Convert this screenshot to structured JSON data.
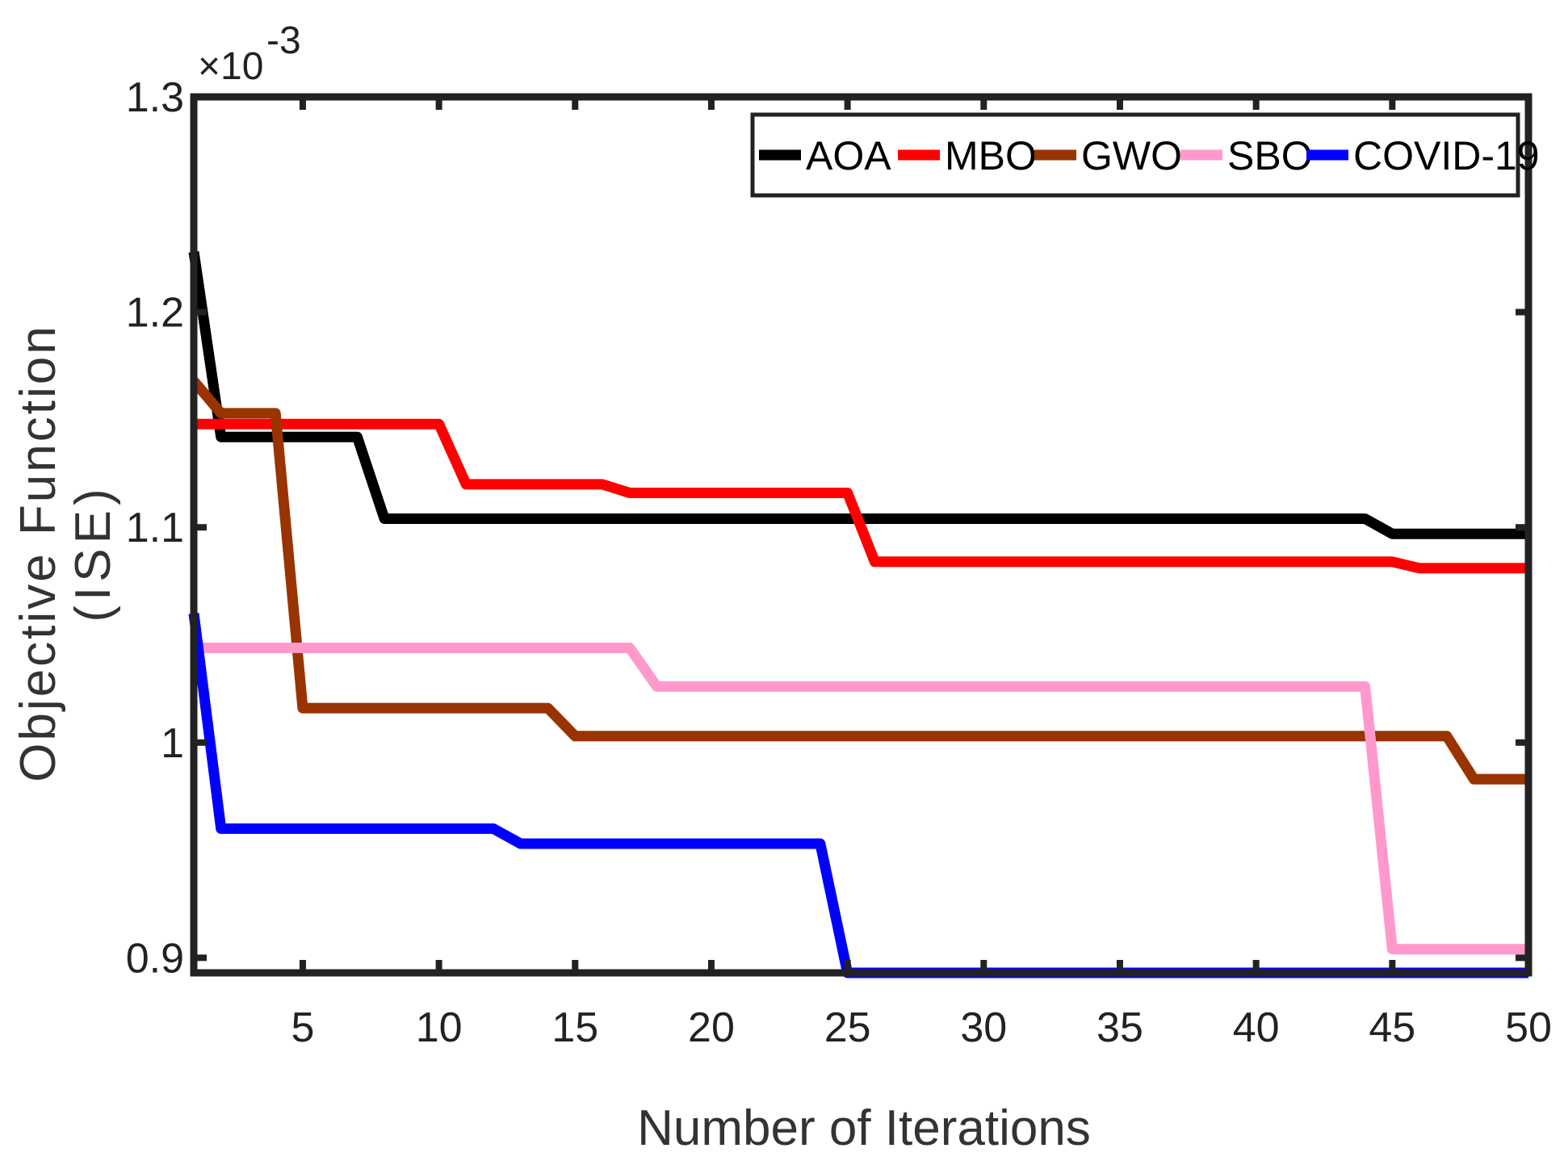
{
  "chart_data": {
    "type": "line",
    "title": "",
    "xlabel": "Number of Iterations",
    "ylabel_line1": "Objective Function",
    "ylabel_line2": "(ISE)",
    "y_multiplier_base": "×10",
    "y_multiplier_exp": "-3",
    "xlim": [
      1,
      50
    ],
    "ylim": [
      0.893,
      1.3
    ],
    "xticks": [
      5,
      10,
      15,
      20,
      25,
      30,
      35,
      40,
      45,
      50
    ],
    "xtick_labels": [
      "5",
      "10",
      "15",
      "20",
      "25",
      "30",
      "35",
      "40",
      "45",
      "50"
    ],
    "yticks": [
      0.9,
      1.0,
      1.1,
      1.2,
      1.3
    ],
    "ytick_labels": [
      "0.9",
      "1",
      "1.1",
      "1.2",
      "1.3"
    ],
    "legend_position": "top-right",
    "series": [
      {
        "name": "AOA",
        "color": "#000000",
        "points": [
          [
            1,
            1.228
          ],
          [
            2,
            1.142
          ],
          [
            7,
            1.142
          ],
          [
            8,
            1.104
          ],
          [
            44,
            1.104
          ],
          [
            45,
            1.097
          ],
          [
            50,
            1.097
          ]
        ]
      },
      {
        "name": "MBO",
        "color": "#ff0000",
        "points": [
          [
            1,
            1.148
          ],
          [
            10,
            1.148
          ],
          [
            11,
            1.12
          ],
          [
            16,
            1.12
          ],
          [
            17,
            1.116
          ],
          [
            25,
            1.116
          ],
          [
            26,
            1.084
          ],
          [
            45,
            1.084
          ],
          [
            46,
            1.081
          ],
          [
            50,
            1.081
          ]
        ]
      },
      {
        "name": "GWO",
        "color": "#993300",
        "points": [
          [
            1,
            1.168
          ],
          [
            2,
            1.153
          ],
          [
            4,
            1.153
          ],
          [
            5,
            1.016
          ],
          [
            14,
            1.016
          ],
          [
            15,
            1.003
          ],
          [
            47,
            1.003
          ],
          [
            48,
            0.983
          ],
          [
            50,
            0.983
          ]
        ]
      },
      {
        "name": "SBO",
        "color": "#ff99cc",
        "points": [
          [
            1,
            1.044
          ],
          [
            17,
            1.044
          ],
          [
            18,
            1.026
          ],
          [
            44,
            1.026
          ],
          [
            45,
            0.904
          ],
          [
            50,
            0.904
          ]
        ]
      },
      {
        "name": "COVID-19",
        "color": "#0000ff",
        "points": [
          [
            1,
            1.06
          ],
          [
            2,
            0.96
          ],
          [
            12,
            0.96
          ],
          [
            13,
            0.953
          ],
          [
            24,
            0.953
          ],
          [
            25,
            0.893
          ],
          [
            50,
            0.893
          ]
        ]
      }
    ]
  }
}
